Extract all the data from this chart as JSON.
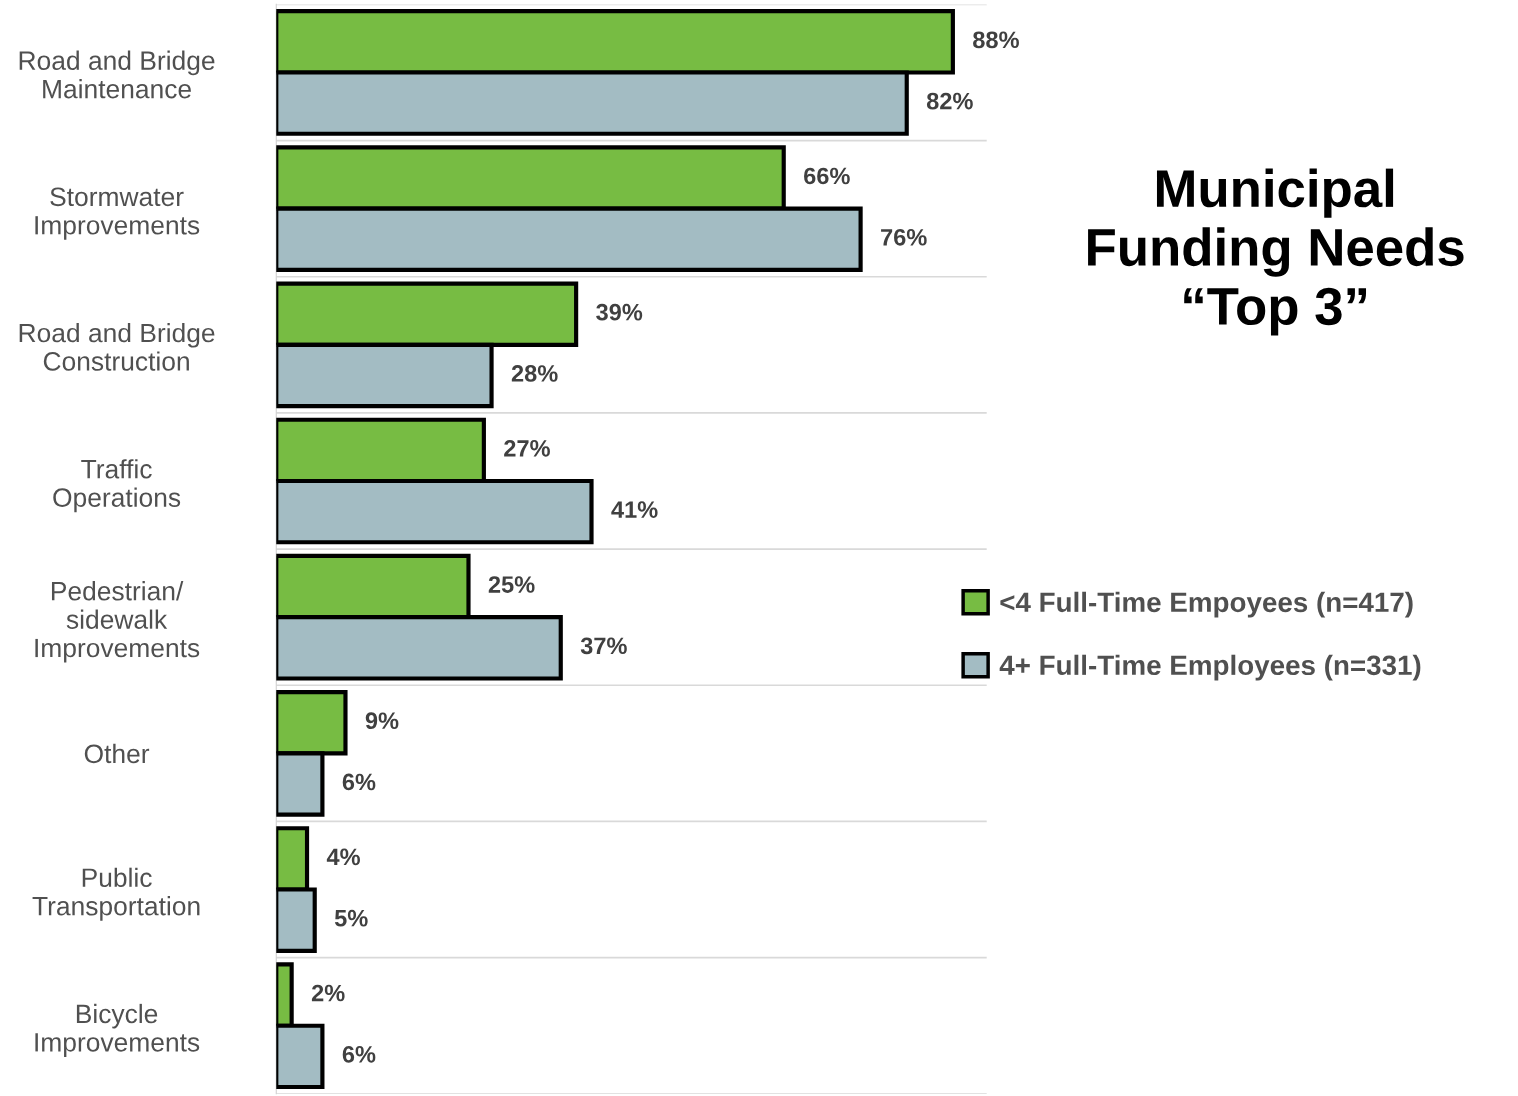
{
  "chart_data": {
    "type": "bar",
    "orientation": "horizontal",
    "title": "Municipal\nFunding Needs\n“Top 3”",
    "categories": [
      "Road and Bridge\nMaintenance",
      "Stormwater\nImprovements",
      "Road and Bridge\nConstruction",
      "Traffic\nOperations",
      "Pedestrian/\nsidewalk\nImprovements",
      "Other",
      "Public\nTransportation",
      "Bicycle\nImprovements"
    ],
    "series": [
      {
        "name": "<4 Full-Time Empoyees (n=417)",
        "color": "#77bc43",
        "values": [
          88,
          66,
          39,
          27,
          25,
          9,
          4,
          2
        ],
        "value_labels": [
          "88%",
          "66%",
          "39%",
          "27%",
          "25%",
          "9%",
          "4%",
          "2%"
        ]
      },
      {
        "name": "4+ Full-Time Employees (n=331)",
        "color": "#a3bcc3",
        "values": [
          82,
          76,
          28,
          41,
          37,
          6,
          5,
          6
        ],
        "value_labels": [
          "82%",
          "76%",
          "28%",
          "41%",
          "37%",
          "6%",
          "5%",
          "6%"
        ]
      }
    ],
    "grid": "y",
    "legend": "right"
  }
}
